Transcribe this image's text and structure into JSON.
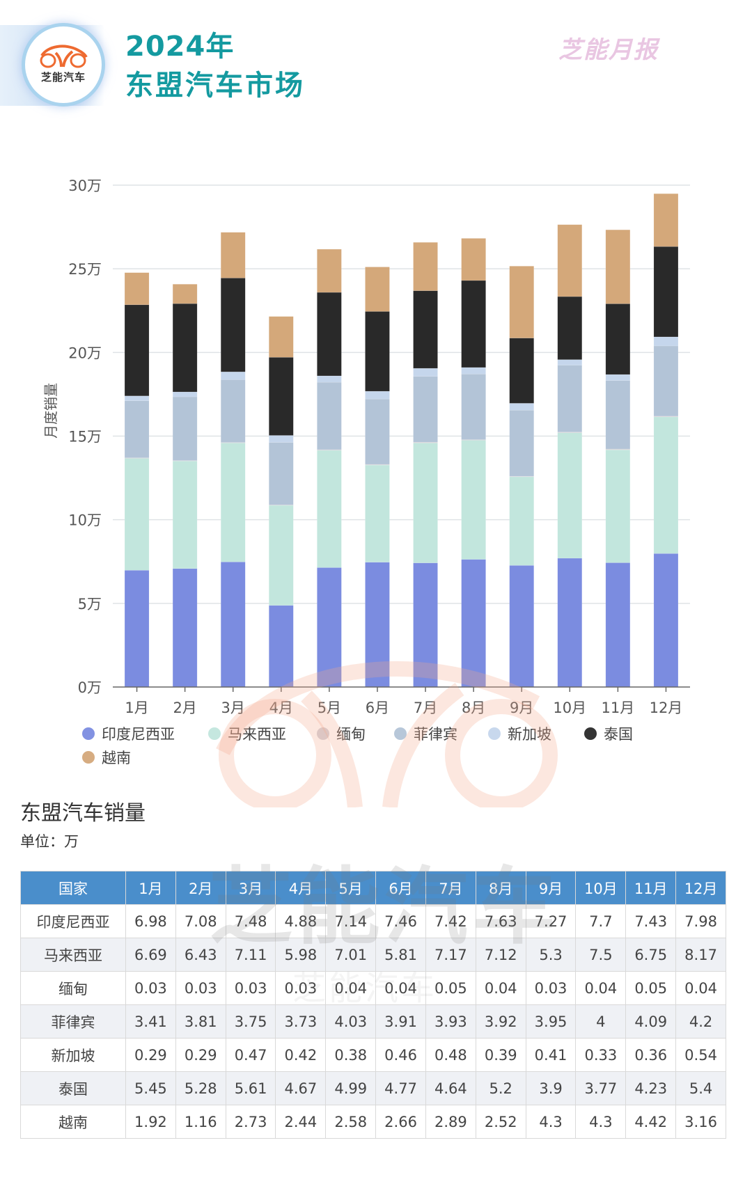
{
  "header": {
    "logo_text": "芝能汽车",
    "title_line1": "2024年",
    "title_line2": "东盟汽车市场",
    "brand_mark": "芝能月报"
  },
  "watermark": {
    "text": "芝能汽车"
  },
  "chart_data": {
    "type": "bar",
    "stacked": true,
    "title": "",
    "xlabel": "",
    "ylabel": "月度销量",
    "ylim": [
      0,
      30
    ],
    "yticks": [
      0,
      5,
      10,
      15,
      20,
      25,
      30
    ],
    "ytick_labels": [
      "0万",
      "5万",
      "10万",
      "15万",
      "20万",
      "25万",
      "30万"
    ],
    "grid": true,
    "legend_position": "bottom-left",
    "categories": [
      "1月",
      "2月",
      "3月",
      "4月",
      "5月",
      "6月",
      "7月",
      "8月",
      "9月",
      "10月",
      "11月",
      "12月"
    ],
    "series": [
      {
        "name": "印度尼西亚",
        "color": "#7b8ce0",
        "values": [
          6.98,
          7.08,
          7.48,
          4.88,
          7.14,
          7.46,
          7.42,
          7.63,
          7.27,
          7.7,
          7.43,
          7.98
        ]
      },
      {
        "name": "马来西亚",
        "color": "#c2e6dd",
        "values": [
          6.69,
          6.43,
          7.11,
          5.98,
          7.01,
          5.81,
          7.17,
          7.12,
          5.3,
          7.5,
          6.75,
          8.17
        ]
      },
      {
        "name": "缅甸",
        "color": "#d3d0d6",
        "values": [
          0.03,
          0.03,
          0.03,
          0.03,
          0.04,
          0.04,
          0.05,
          0.04,
          0.03,
          0.04,
          0.05,
          0.04
        ]
      },
      {
        "name": "菲律宾",
        "color": "#b3c4d7",
        "values": [
          3.41,
          3.81,
          3.75,
          3.73,
          4.03,
          3.91,
          3.93,
          3.92,
          3.95,
          4,
          4.09,
          4.2
        ]
      },
      {
        "name": "新加坡",
        "color": "#c5d6ec",
        "values": [
          0.29,
          0.29,
          0.47,
          0.42,
          0.38,
          0.46,
          0.48,
          0.39,
          0.41,
          0.33,
          0.36,
          0.54
        ]
      },
      {
        "name": "泰国",
        "color": "#292929",
        "values": [
          5.45,
          5.28,
          5.61,
          4.67,
          4.99,
          4.77,
          4.64,
          5.2,
          3.9,
          3.77,
          4.23,
          5.4
        ]
      },
      {
        "name": "越南",
        "color": "#d4a87a",
        "values": [
          1.92,
          1.16,
          2.73,
          2.44,
          2.58,
          2.66,
          2.89,
          2.52,
          4.3,
          4.3,
          4.42,
          3.16
        ]
      }
    ]
  },
  "table": {
    "title": "东盟汽车销量",
    "unit": "单位：万",
    "header_color": "#4a8ecb",
    "columns": [
      "国家",
      "1月",
      "2月",
      "3月",
      "4月",
      "5月",
      "6月",
      "7月",
      "8月",
      "9月",
      "10月",
      "11月",
      "12月"
    ],
    "rows": [
      [
        "印度尼西亚",
        "6.98",
        "7.08",
        "7.48",
        "4.88",
        "7.14",
        "7.46",
        "7.42",
        "7.63",
        "7.27",
        "7.7",
        "7.43",
        "7.98"
      ],
      [
        "马来西亚",
        "6.69",
        "6.43",
        "7.11",
        "5.98",
        "7.01",
        "5.81",
        "7.17",
        "7.12",
        "5.3",
        "7.5",
        "6.75",
        "8.17"
      ],
      [
        "缅甸",
        "0.03",
        "0.03",
        "0.03",
        "0.03",
        "0.04",
        "0.04",
        "0.05",
        "0.04",
        "0.03",
        "0.04",
        "0.05",
        "0.04"
      ],
      [
        "菲律宾",
        "3.41",
        "3.81",
        "3.75",
        "3.73",
        "4.03",
        "3.91",
        "3.93",
        "3.92",
        "3.95",
        "4",
        "4.09",
        "4.2"
      ],
      [
        "新加坡",
        "0.29",
        "0.29",
        "0.47",
        "0.42",
        "0.38",
        "0.46",
        "0.48",
        "0.39",
        "0.41",
        "0.33",
        "0.36",
        "0.54"
      ],
      [
        "泰国",
        "5.45",
        "5.28",
        "5.61",
        "4.67",
        "4.99",
        "4.77",
        "4.64",
        "5.2",
        "3.9",
        "3.77",
        "4.23",
        "5.4"
      ],
      [
        "越南",
        "1.92",
        "1.16",
        "2.73",
        "2.44",
        "2.58",
        "2.66",
        "2.89",
        "2.52",
        "4.3",
        "4.3",
        "4.42",
        "3.16"
      ]
    ]
  }
}
